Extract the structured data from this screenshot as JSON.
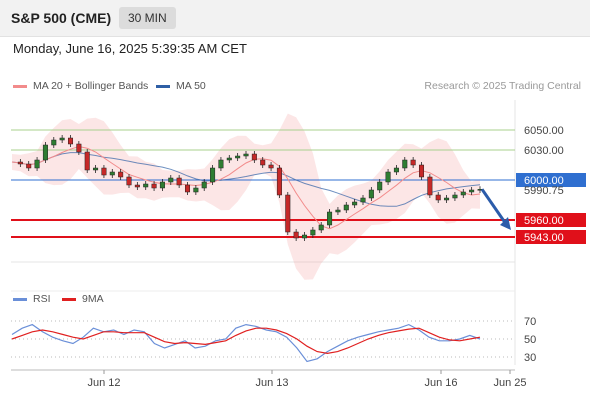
{
  "header": {
    "title": "S&P 500 (CME)",
    "interval": "30 MIN"
  },
  "timestamp": "Monday, June 16, 2025 5:39:35 AM CET",
  "legend": {
    "bollinger": "MA 20 + Bollinger Bands",
    "ma50": "MA 50",
    "rsi": "RSI",
    "nine_ma": "9MA"
  },
  "credit": "Research © 2025 Trading Central",
  "colors": {
    "bollinger": "#f28b8b",
    "ma50": "#2f5fa5",
    "rsi": "#6a8fd8",
    "nine_ma": "#e02020",
    "support": "#e0101a",
    "pivot": "#2f6fd0",
    "resistance": "#a8d08d",
    "candle_up": "#2e7d32",
    "candle_down": "#c62828"
  },
  "chart_data": [
    {
      "type": "candlestick",
      "ylim": [
        5918,
        6080
      ],
      "price_labels": {
        "current": "5990.75"
      },
      "levels": [
        {
          "label": "6050.00",
          "value": 6050,
          "kind": "resistance"
        },
        {
          "label": "6030.00",
          "value": 6030,
          "kind": "resistance"
        },
        {
          "label": "6000.00",
          "value": 6000,
          "kind": "pivot"
        },
        {
          "label": "5960.00",
          "value": 5960,
          "kind": "support"
        },
        {
          "label": "5943.00",
          "value": 5943,
          "kind": "support"
        }
      ],
      "close_path": [
        6018,
        6016,
        6012,
        6020,
        6035,
        6040,
        6042,
        6036,
        6028,
        6010,
        6012,
        6005,
        6008,
        6003,
        5995,
        5993,
        5996,
        5992,
        5998,
        6002,
        5995,
        5988,
        5992,
        5998,
        6012,
        6020,
        6022,
        6024,
        6026,
        6020,
        6015,
        6012,
        5985,
        5948,
        5942,
        5945,
        5950,
        5955,
        5968,
        5970,
        5975,
        5978,
        5982,
        5990,
        5998,
        6008,
        6012,
        6020,
        6015,
        6003,
        5985,
        5980,
        5982,
        5985,
        5988,
        5990,
        5990.75
      ],
      "x_ticks": [
        "Jun 12",
        "Jun 13",
        "Jun 16",
        "Jun 25"
      ],
      "forecast_arrow": {
        "from": 5990.75,
        "to": 5950
      }
    },
    {
      "type": "line",
      "ylim": [
        20,
        80
      ],
      "y_ticks": [
        "70",
        "50",
        "30"
      ],
      "series": [
        {
          "name": "RSI",
          "values": [
            55,
            62,
            66,
            58,
            52,
            48,
            45,
            52,
            62,
            58,
            60,
            55,
            60,
            58,
            45,
            40,
            44,
            48,
            40,
            42,
            48,
            50,
            62,
            66,
            64,
            60,
            58,
            52,
            40,
            25,
            28,
            36,
            42,
            48,
            52,
            55,
            58,
            60,
            62,
            66,
            60,
            52,
            48,
            48,
            50,
            54,
            50
          ]
        },
        {
          "name": "9MA",
          "values": [
            50,
            54,
            58,
            60,
            58,
            55,
            52,
            50,
            54,
            58,
            58,
            57,
            57,
            57,
            52,
            47,
            45,
            46,
            45,
            44,
            46,
            48,
            54,
            59,
            62,
            62,
            60,
            56,
            50,
            42,
            36,
            34,
            36,
            40,
            45,
            50,
            54,
            57,
            59,
            61,
            62,
            57,
            52,
            49,
            48,
            50,
            52
          ]
        }
      ]
    }
  ]
}
